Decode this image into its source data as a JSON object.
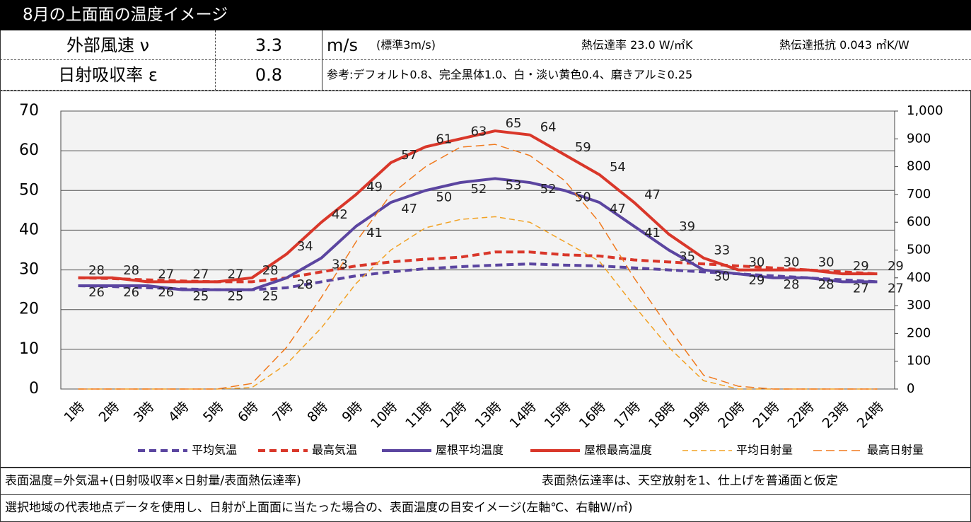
{
  "header": {
    "title": "8月の上面面の温度イメージ",
    "rows": [
      {
        "label": "外部風速 ν",
        "value": "3.3",
        "unit": "m/s",
        "note": "(標準3m/s)",
        "extra1": "熱伝達率 23.0 W/㎡K",
        "extra2": "熱伝達抵抗 0.043 ㎡K/W"
      },
      {
        "label": "日射吸収率 ε",
        "value": "0.8",
        "note": "参考:デフォルト0.8、完全黒体1.0、白・淡い黄色0.4、磨きアルミ0.25"
      }
    ]
  },
  "chart_data": {
    "type": "line",
    "categories": [
      "1時",
      "2時",
      "3時",
      "4時",
      "5時",
      "6時",
      "7時",
      "8時",
      "9時",
      "10時",
      "11時",
      "12時",
      "13時",
      "14時",
      "15時",
      "16時",
      "17時",
      "18時",
      "19時",
      "20時",
      "21時",
      "22時",
      "23時",
      "24時"
    ],
    "series": [
      {
        "name": "平均気温",
        "color": "#5b45a0",
        "dash": "10,6",
        "width": 4,
        "values": [
          26,
          25.8,
          25.5,
          25.2,
          25,
          25,
          25.5,
          27,
          28.5,
          29.5,
          30.3,
          30.8,
          31.2,
          31.5,
          31.2,
          31,
          30.5,
          30,
          29.5,
          29,
          28.5,
          28,
          27.5,
          27
        ]
      },
      {
        "name": "最高気温",
        "color": "#d9372a",
        "dash": "10,6",
        "width": 4,
        "values": [
          28,
          27.8,
          27.5,
          27.2,
          27,
          27,
          28,
          29.5,
          31,
          32,
          32.7,
          33.2,
          34.5,
          34.5,
          33.8,
          33.5,
          32.5,
          32,
          31.5,
          31,
          30.5,
          30,
          29.5,
          29
        ]
      },
      {
        "name": "屋根平均温度",
        "color": "#5b45a0",
        "width": 4,
        "labels": true,
        "values": [
          26,
          26,
          26,
          25,
          25,
          25,
          28,
          33,
          41,
          47,
          50,
          52,
          53,
          52,
          50,
          47,
          41,
          35,
          30,
          29,
          28,
          28,
          27,
          27
        ]
      },
      {
        "name": "屋根最高温度",
        "color": "#d9372a",
        "width": 4,
        "labels": true,
        "values": [
          28,
          28,
          27,
          27,
          27,
          28,
          34,
          42,
          49,
          57,
          61,
          63,
          65,
          64,
          59,
          54,
          47,
          39,
          33,
          30,
          30,
          30,
          29,
          29
        ]
      },
      {
        "name": "平均日射量",
        "color": "#f2a224",
        "dash": "8,5",
        "width": 1.5,
        "axis": "y2",
        "values": [
          0,
          0,
          0,
          0,
          0,
          5,
          90,
          220,
          380,
          500,
          580,
          610,
          620,
          600,
          530,
          460,
          300,
          150,
          30,
          0,
          0,
          0,
          0,
          0
        ]
      },
      {
        "name": "最高日射量",
        "color": "#f07a1e",
        "dash": "12,6",
        "width": 1.5,
        "axis": "y2",
        "values": [
          0,
          0,
          0,
          0,
          0,
          20,
          150,
          330,
          530,
          700,
          800,
          870,
          880,
          840,
          750,
          600,
          400,
          220,
          50,
          10,
          0,
          0,
          0,
          0
        ]
      }
    ],
    "ylim": [
      0,
      70
    ],
    "yticks": [
      0,
      10,
      20,
      30,
      40,
      50,
      60,
      70
    ],
    "y2lim": [
      0,
      1000
    ],
    "y2ticks": [
      0,
      100,
      200,
      300,
      400,
      500,
      600,
      700,
      800,
      900,
      {
        "value": 1000,
        "label": "1,000"
      }
    ],
    "grid": true,
    "legend": "bottom"
  },
  "footer": {
    "line1": "表面温度=外気温+(日射吸収率×日射量/表面熱伝達率)",
    "line1b": "表面熱伝達率は、天空放射を1、仕上げを普通面と仮定",
    "line2": "選択地域の代表地点データを使用し、日射が上面面に当たった場合の、表面温度の目安イメージ(左軸℃、右軸W/㎡)"
  }
}
